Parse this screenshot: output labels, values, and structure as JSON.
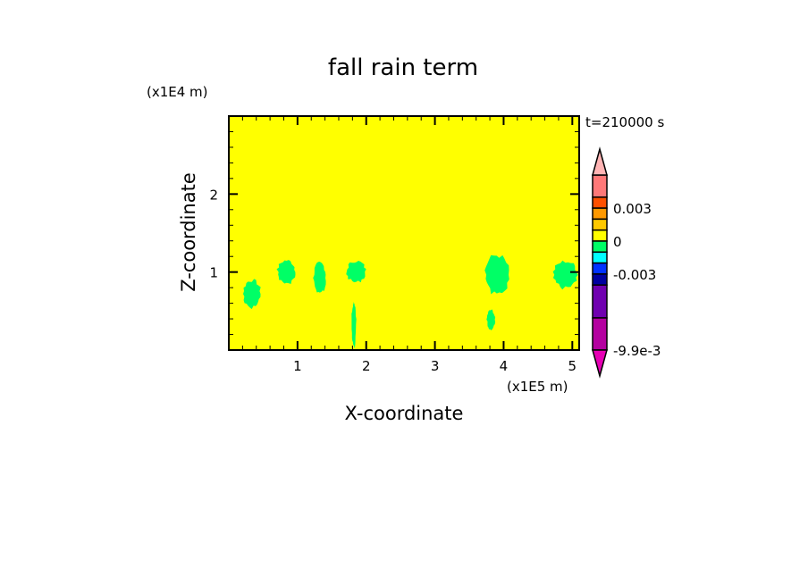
{
  "chart_data": {
    "type": "heatmap",
    "title": "fall rain term",
    "xlabel": "X-coordinate",
    "ylabel": "Z-coordinate",
    "x_unit_label": "(x1E5 m)",
    "y_unit_label": "(x1E4 m)",
    "time_label": "t=210000 s",
    "xlim": [
      0,
      5.1
    ],
    "ylim": [
      0,
      3.0
    ],
    "x_ticks": [
      1,
      2,
      3,
      4,
      5
    ],
    "y_ticks": [
      1,
      2
    ],
    "x_tick_labels": [
      "1",
      "2",
      "3",
      "4",
      "5"
    ],
    "y_tick_labels": [
      "1",
      "2"
    ],
    "background_value_color": "#ffff00",
    "regions": [
      {
        "label": "0 to -0.001",
        "color": "#00ff66",
        "x": [
          0.19,
          0.48
        ],
        "z": [
          0.52,
          0.92
        ]
      },
      {
        "label": "0 to -0.001",
        "color": "#00ff66",
        "x": [
          0.69,
          0.99
        ],
        "z": [
          0.83,
          1.17
        ]
      },
      {
        "label": "0 to -0.001",
        "color": "#00ff66",
        "x": [
          1.22,
          1.43
        ],
        "z": [
          0.71,
          1.14
        ]
      },
      {
        "label": "0 to -0.001",
        "color": "#00ff66",
        "x": [
          1.7,
          2.01
        ],
        "z": [
          0.85,
          1.16
        ]
      },
      {
        "label": "0 to -0.001",
        "color": "#00ff66",
        "x": [
          1.78,
          1.86
        ],
        "z": [
          0.0,
          0.66
        ]
      },
      {
        "label": "0 to -0.001",
        "color": "#00ff66",
        "x": [
          3.7,
          4.1
        ],
        "z": [
          0.68,
          1.25
        ]
      },
      {
        "label": "0 to -0.001",
        "color": "#00ff66",
        "x": [
          3.75,
          3.88
        ],
        "z": [
          0.25,
          0.53
        ]
      },
      {
        "label": "0 to -0.001",
        "color": "#00ff66",
        "x": [
          4.7,
          5.1
        ],
        "z": [
          0.77,
          1.16
        ]
      }
    ],
    "colorbar": {
      "tick_labels": [
        "0.003",
        "0",
        "-0.003",
        "-9.9e-3"
      ],
      "tick_values": [
        0.003,
        0,
        -0.003,
        -0.0099
      ],
      "levels": [
        0.006,
        0.004,
        0.003,
        0.002,
        0.001,
        0,
        -0.001,
        -0.002,
        -0.003,
        -0.004,
        -0.007,
        -0.0099
      ],
      "colors": [
        "#ff7878",
        "#ff5000",
        "#ff9900",
        "#ffc800",
        "#ffff00",
        "#00ff66",
        "#00ffff",
        "#0032ff",
        "#0000a0",
        "#7000b0",
        "#b400a0"
      ],
      "over_color": "#ffb4b4",
      "under_color": "#e600b4"
    }
  }
}
